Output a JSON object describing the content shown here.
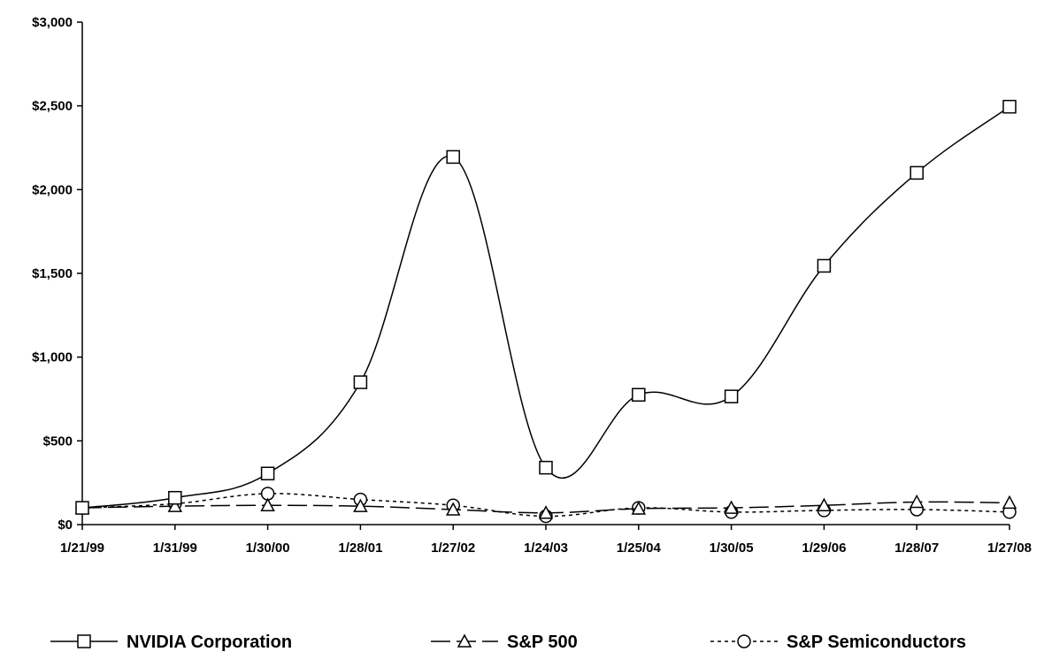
{
  "chart_data": {
    "type": "line",
    "title": "",
    "xlabel": "",
    "ylabel": "",
    "categories": [
      "1/21/99",
      "1/31/99",
      "1/30/00",
      "1/28/01",
      "1/27/02",
      "1/24/03",
      "1/25/04",
      "1/30/05",
      "1/29/06",
      "1/28/07",
      "1/27/08"
    ],
    "y_ticks": [
      "$0",
      "$500",
      "$1,000",
      "$1,500",
      "$2,000",
      "$2,500",
      "$3,000"
    ],
    "ylim": [
      0,
      3000
    ],
    "grid": false,
    "legend_position": "bottom",
    "series": [
      {
        "name": "NVIDIA Corporation",
        "marker": "square",
        "dash": "solid",
        "color": "#000000",
        "values": [
          100,
          160,
          305,
          850,
          2195,
          340,
          775,
          765,
          1545,
          2100,
          2495
        ]
      },
      {
        "name": "S&P 500",
        "marker": "triangle",
        "dash": "long-dash",
        "color": "#000000",
        "values": [
          100,
          110,
          115,
          110,
          90,
          70,
          95,
          100,
          115,
          135,
          130
        ]
      },
      {
        "name": "S&P Semiconductors",
        "marker": "circle",
        "dash": "short-dash",
        "color": "#000000",
        "values": [
          100,
          125,
          185,
          150,
          115,
          50,
          100,
          75,
          85,
          90,
          75
        ]
      }
    ]
  }
}
